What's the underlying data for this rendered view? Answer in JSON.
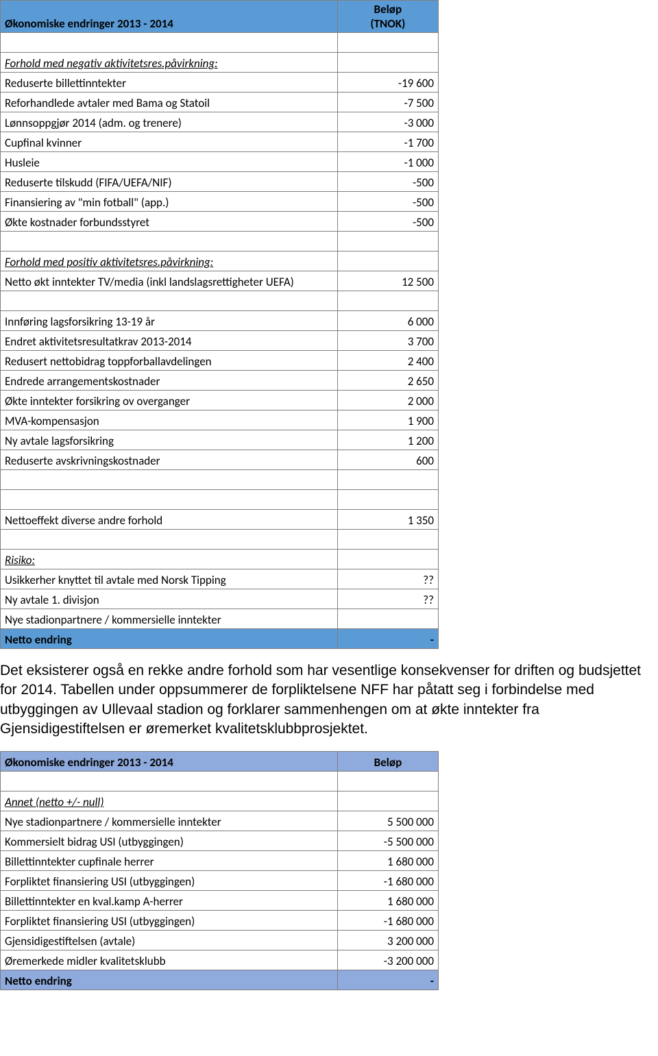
{
  "table1": {
    "header_left": "Økonomiske endringer 2013 - 2014",
    "header_right_line1": "Beløp",
    "header_right_line2": "(TNOK)",
    "section_neg": "Forhold med negativ aktivitetsres.påvirkning:",
    "rows_neg": [
      {
        "label": "Reduserte billettinntekter",
        "value": "-19 600"
      },
      {
        "label": "Reforhandlede avtaler med Bama og Statoil",
        "value": "-7 500"
      },
      {
        "label": "Lønnsoppgjør 2014 (adm. og trenere)",
        "value": "-3 000"
      },
      {
        "label": "Cupfinal kvinner",
        "value": "-1 700"
      },
      {
        "label": "Husleie",
        "value": "-1 000"
      },
      {
        "label": "Reduserte tilskudd (FIFA/UEFA/NIF)",
        "value": "-500"
      },
      {
        "label": "Finansiering av \"min fotball\" (app.)",
        "value": "-500"
      },
      {
        "label": "Økte kostnader forbundsstyret",
        "value": "-500"
      }
    ],
    "section_pos": "Forhold med positiv aktivitetsres.påvirkning:",
    "rows_pos1": [
      {
        "label": "Netto økt inntekter TV/media (inkl landslagsrettigheter UEFA)",
        "value": "12 500"
      }
    ],
    "rows_pos2": [
      {
        "label": "Innføring lagsforsikring 13-19 år",
        "value": "6 000"
      },
      {
        "label": "Endret aktivitetsresultatkrav 2013-2014",
        "value": "3 700"
      },
      {
        "label": "Redusert nettobidrag toppforballavdelingen",
        "value": "2 400"
      },
      {
        "label": "Endrede arrangementskostnader",
        "value": "2 650"
      },
      {
        "label": "Økte inntekter forsikring ov overganger",
        "value": "2 000"
      },
      {
        "label": "MVA-kompensasjon",
        "value": "1 900"
      },
      {
        "label": "Ny avtale lagsforsikring",
        "value": "1 200"
      },
      {
        "label": "Reduserte avskrivningskostnader",
        "value": "600"
      }
    ],
    "netto_div": {
      "label": "Nettoeffekt diverse andre forhold",
      "value": "1 350"
    },
    "section_risk": "Risiko:",
    "rows_risk": [
      {
        "label": "Usikkerher knyttet til avtale med Norsk Tipping",
        "value": "??"
      },
      {
        "label": "Ny avtale 1. divisjon",
        "value": "??"
      },
      {
        "label": "Nye stadionpartnere / kommersielle inntekter",
        "value": ""
      }
    ],
    "footer_label": "Netto endring",
    "footer_value": "-"
  },
  "paragraph": "Det eksisterer også en rekke andre forhold som har vesentlige konsekvenser for driften og budsjettet for 2014. Tabellen under oppsummerer de forpliktelsene NFF har påtatt seg i forbindelse med utbyggingen av Ullevaal stadion og forklarer sammenhengen om at økte inntekter fra Gjensidigestiftelsen er øremerket kvalitetsklubbprosjektet.",
  "table2": {
    "header_left": "Økonomiske endringer 2013 - 2014",
    "header_right": "Beløp",
    "section": "Annet (netto +/- null)",
    "rows": [
      {
        "label": "Nye stadionpartnere / kommersielle inntekter",
        "value": "5 500 000"
      },
      {
        "label": "Kommersielt bidrag USI (utbyggingen)",
        "value": "-5 500 000"
      },
      {
        "label": "Billettinntekter cupfinale herrer",
        "value": "1 680 000"
      },
      {
        "label": "Forpliktet finansiering USI (utbyggingen)",
        "value": "-1 680 000"
      },
      {
        "label": "Billettinntekter en kval.kamp A-herrer",
        "value": "1 680 000"
      },
      {
        "label": "Forpliktet finansiering USI (utbyggingen)",
        "value": "-1 680 000"
      },
      {
        "label": "Gjensidigestiftelsen (avtale)",
        "value": "3 200 000"
      },
      {
        "label": "Øremerkede midler kvalitetsklubb",
        "value": "-3 200 000"
      }
    ],
    "footer_label": "Netto endring",
    "footer_value": "-"
  }
}
